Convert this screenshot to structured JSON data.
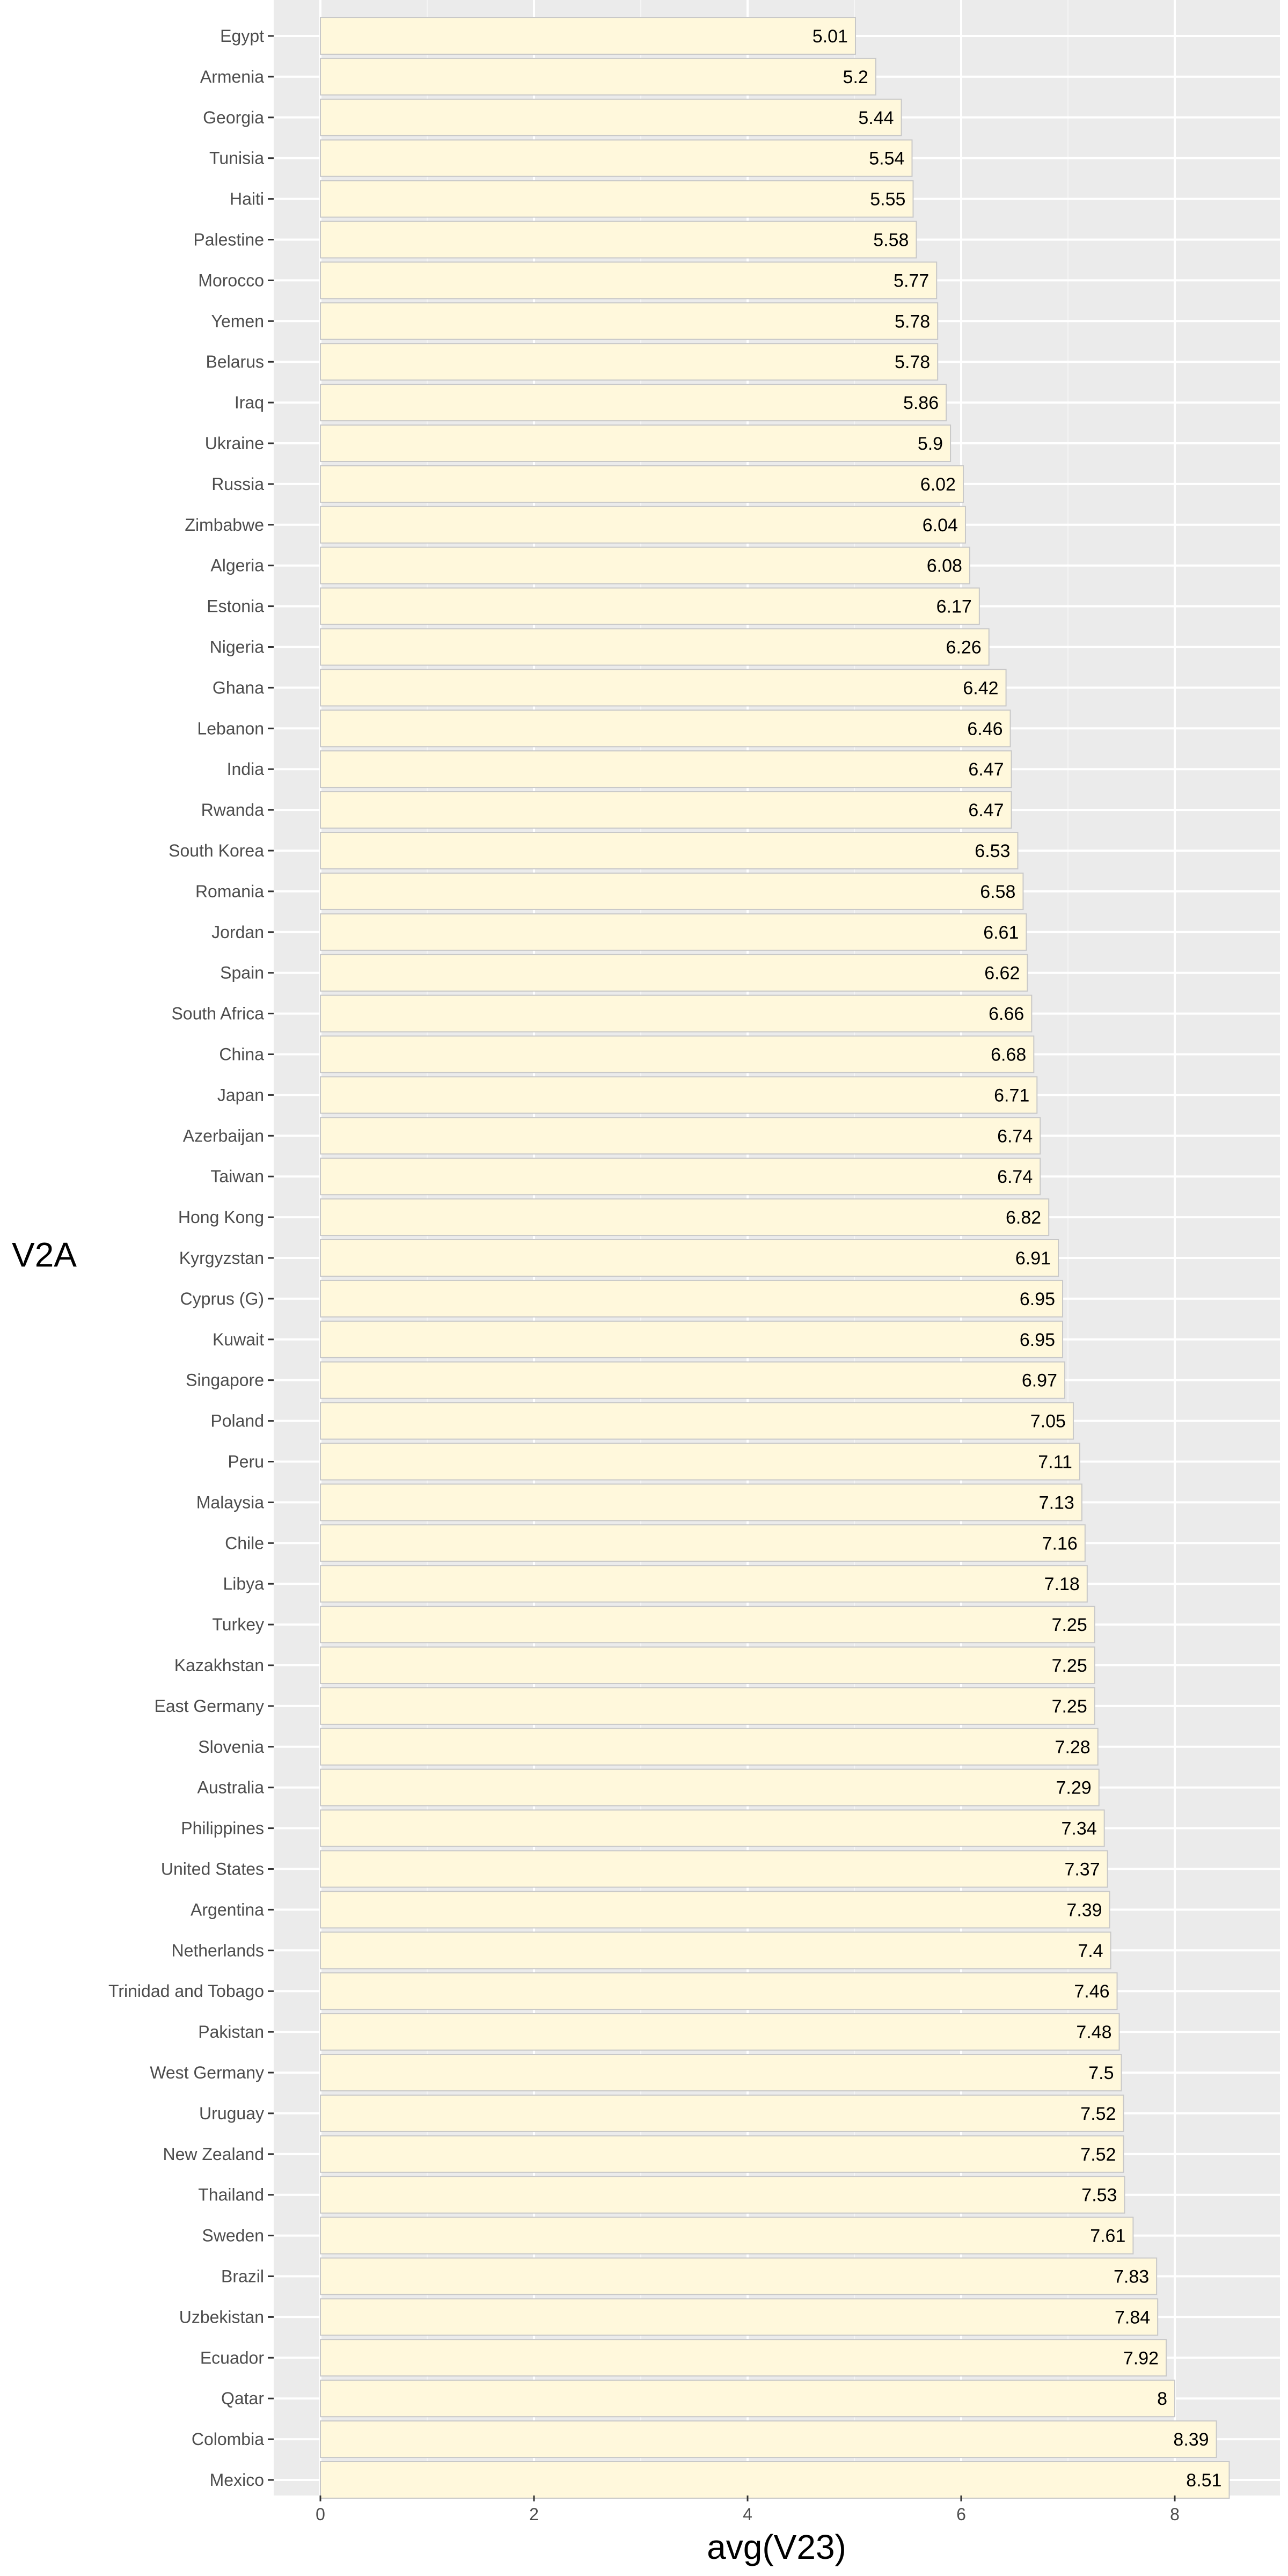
{
  "chart_data": {
    "type": "bar",
    "orientation": "horizontal",
    "xlabel": "avg(V23)",
    "ylabel": "V2A",
    "xlim": [
      0,
      8.9
    ],
    "x_ticks": [
      0,
      2,
      4,
      6,
      8
    ],
    "grid": true,
    "categories": [
      "Egypt",
      "Armenia",
      "Georgia",
      "Tunisia",
      "Haiti",
      "Palestine",
      "Morocco",
      "Yemen",
      "Belarus",
      "Iraq",
      "Ukraine",
      "Russia",
      "Zimbabwe",
      "Algeria",
      "Estonia",
      "Nigeria",
      "Ghana",
      "Lebanon",
      "India",
      "Rwanda",
      "South Korea",
      "Romania",
      "Jordan",
      "Spain",
      "South Africa",
      "China",
      "Japan",
      "Azerbaijan",
      "Taiwan",
      "Hong Kong",
      "Kyrgyzstan",
      "Cyprus (G)",
      "Kuwait",
      "Singapore",
      "Poland",
      "Peru",
      "Malaysia",
      "Chile",
      "Libya",
      "Turkey",
      "Kazakhstan",
      "East Germany",
      "Slovenia",
      "Australia",
      "Philippines",
      "United States",
      "Argentina",
      "Netherlands",
      "Trinidad and Tobago",
      "Pakistan",
      "West Germany",
      "Uruguay",
      "New Zealand",
      "Thailand",
      "Sweden",
      "Brazil",
      "Uzbekistan",
      "Ecuador",
      "Qatar",
      "Colombia",
      "Mexico"
    ],
    "values": [
      5.01,
      5.2,
      5.44,
      5.54,
      5.55,
      5.58,
      5.77,
      5.78,
      5.78,
      5.86,
      5.9,
      6.02,
      6.04,
      6.08,
      6.17,
      6.26,
      6.42,
      6.46,
      6.47,
      6.47,
      6.53,
      6.58,
      6.61,
      6.62,
      6.66,
      6.68,
      6.71,
      6.74,
      6.74,
      6.82,
      6.91,
      6.95,
      6.95,
      6.97,
      7.05,
      7.11,
      7.13,
      7.16,
      7.18,
      7.25,
      7.25,
      7.25,
      7.28,
      7.29,
      7.34,
      7.37,
      7.39,
      7.4,
      7.46,
      7.48,
      7.5,
      7.52,
      7.52,
      7.53,
      7.61,
      7.83,
      7.84,
      7.92,
      8,
      8.39,
      8.51
    ],
    "value_labels": [
      "5.01",
      "5.2",
      "5.44",
      "5.54",
      "5.55",
      "5.58",
      "5.77",
      "5.78",
      "5.78",
      "5.86",
      "5.9",
      "6.02",
      "6.04",
      "6.08",
      "6.17",
      "6.26",
      "6.42",
      "6.46",
      "6.47",
      "6.47",
      "6.53",
      "6.58",
      "6.61",
      "6.62",
      "6.66",
      "6.68",
      "6.71",
      "6.74",
      "6.74",
      "6.82",
      "6.91",
      "6.95",
      "6.95",
      "6.97",
      "7.05",
      "7.11",
      "7.13",
      "7.16",
      "7.18",
      "7.25",
      "7.25",
      "7.25",
      "7.28",
      "7.29",
      "7.34",
      "7.37",
      "7.39",
      "7.4",
      "7.46",
      "7.48",
      "7.5",
      "7.52",
      "7.52",
      "7.53",
      "7.61",
      "7.83",
      "7.84",
      "7.92",
      "8",
      "8.39",
      "8.51"
    ],
    "colors": {
      "bar_fill": "#fff8dc",
      "bar_stroke": "#c8c8c8",
      "panel_background": "#ebebeb",
      "grid_major": "#ffffff",
      "grid_minor": "#f5f5f5",
      "tick_mark": "#333333"
    }
  }
}
